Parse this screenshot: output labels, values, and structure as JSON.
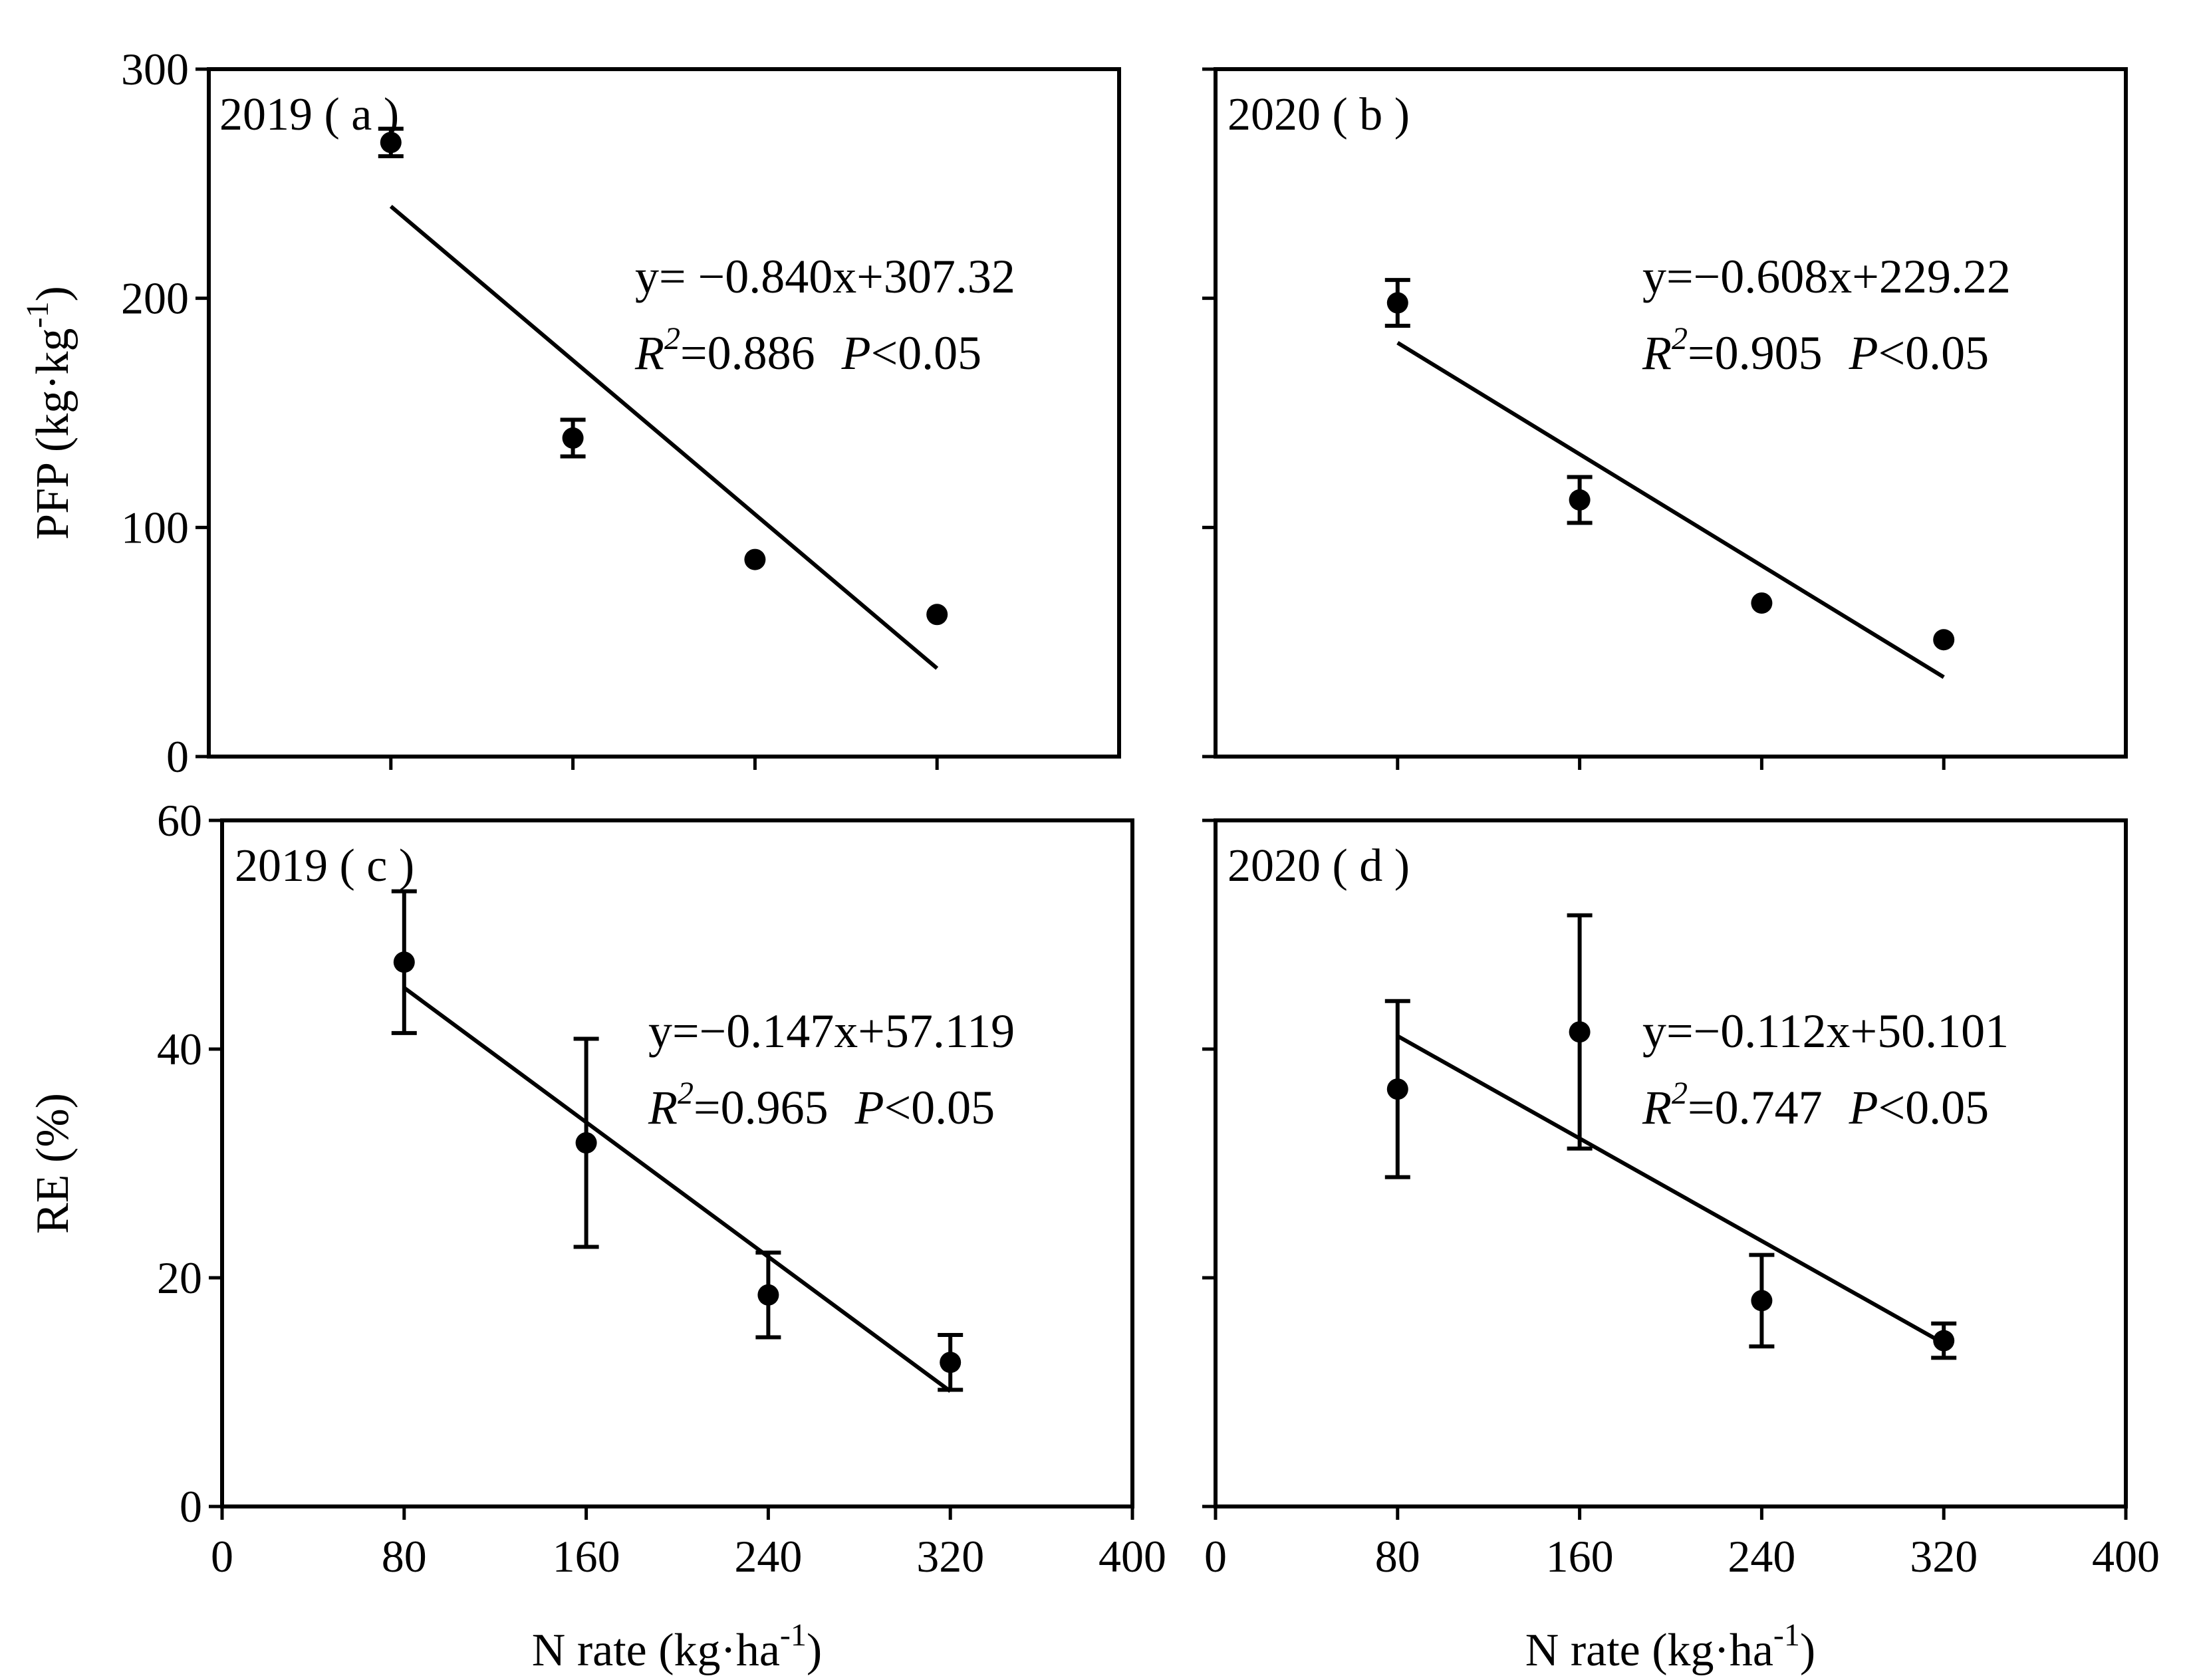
{
  "colors": {
    "ink": "#000000",
    "background": "#ffffff"
  },
  "chart_data": [
    {
      "id": "a",
      "type": "scatter",
      "panel_label": "2019 ( a )",
      "ylabel": "PFP (kg·kg-1)",
      "ylabel_parts": {
        "base": "PFP (kg·kg",
        "sup": "-1",
        "tail": ")"
      },
      "xlabel": "",
      "xlim": [
        0,
        400
      ],
      "ylim": [
        0,
        300
      ],
      "xticks": [
        80,
        160,
        240,
        320
      ],
      "xtick_labels_shown": false,
      "yticks": [
        0,
        100,
        200,
        300
      ],
      "ytick_labels_shown": true,
      "points": [
        {
          "x": 80,
          "y": 268,
          "err": 6
        },
        {
          "x": 160,
          "y": 139,
          "err": 8
        },
        {
          "x": 240,
          "y": 86,
          "err": 0
        },
        {
          "x": 320,
          "y": 62,
          "err": 0
        }
      ],
      "fit": {
        "slope": -0.84,
        "intercept": 307.32,
        "x_range": [
          80,
          320
        ]
      },
      "equation": "y= −0.840x+307.32",
      "r2_label": "R",
      "r2_sup": "2",
      "r2_value": "=0.886",
      "p_label": "P",
      "p_value": "<0.05"
    },
    {
      "id": "b",
      "type": "scatter",
      "panel_label": "2020 ( b )",
      "xlim": [
        0,
        400
      ],
      "ylim": [
        0,
        300
      ],
      "xticks": [
        80,
        160,
        240,
        320
      ],
      "xtick_labels_shown": false,
      "yticks": [
        0,
        100,
        200,
        300
      ],
      "ytick_labels_shown": false,
      "points": [
        {
          "x": 80,
          "y": 198,
          "err": 10
        },
        {
          "x": 160,
          "y": 112,
          "err": 10
        },
        {
          "x": 240,
          "y": 67,
          "err": 0
        },
        {
          "x": 320,
          "y": 51,
          "err": 0
        }
      ],
      "fit": {
        "slope": -0.608,
        "intercept": 229.22,
        "x_range": [
          80,
          320
        ]
      },
      "equation": "y=−0.608x+229.22",
      "r2_label": "R",
      "r2_sup": "2",
      "r2_value": "=0.905",
      "p_label": "P",
      "p_value": "<0.05"
    },
    {
      "id": "c",
      "type": "scatter",
      "panel_label": "2019 ( c )",
      "ylabel": "RE (%)",
      "xlabel": "N rate (kg·ha-1)",
      "xlabel_parts": {
        "base": "N rate (kg·ha",
        "sup": "-1",
        "tail": ")"
      },
      "xlim": [
        0,
        400
      ],
      "ylim": [
        0,
        60
      ],
      "xticks": [
        0,
        80,
        160,
        240,
        320,
        400
      ],
      "xtick_labels_shown": true,
      "yticks": [
        0,
        20,
        40,
        60
      ],
      "ytick_labels_shown": true,
      "points": [
        {
          "x": 80,
          "y": 47.6,
          "err": 6.2
        },
        {
          "x": 160,
          "y": 31.8,
          "err": 9.1
        },
        {
          "x": 240,
          "y": 18.5,
          "err": 3.7
        },
        {
          "x": 320,
          "y": 12.6,
          "err": 2.4
        }
      ],
      "fit": {
        "slope": -0.147,
        "intercept": 57.119,
        "x_range": [
          80,
          320
        ]
      },
      "equation": "y=−0.147x+57.119",
      "r2_label": "R",
      "r2_sup": "2",
      "r2_value": "=0.965",
      "p_label": "P",
      "p_value": "<0.05"
    },
    {
      "id": "d",
      "type": "scatter",
      "panel_label": "2020 ( d )",
      "xlabel": "N rate (kg·ha-1)",
      "xlabel_parts": {
        "base": "N rate (kg·ha",
        "sup": "-1",
        "tail": ")"
      },
      "xlim": [
        0,
        400
      ],
      "ylim": [
        0,
        60
      ],
      "xticks": [
        0,
        80,
        160,
        240,
        320,
        400
      ],
      "xtick_labels_shown": true,
      "yticks": [
        0,
        20,
        40,
        60
      ],
      "ytick_labels_shown": false,
      "points": [
        {
          "x": 80,
          "y": 36.5,
          "err": 7.7
        },
        {
          "x": 160,
          "y": 41.5,
          "err": 10.2
        },
        {
          "x": 240,
          "y": 18.0,
          "err": 4.0
        },
        {
          "x": 320,
          "y": 14.5,
          "err": 1.5
        }
      ],
      "fit": {
        "slope": -0.112,
        "intercept": 50.101,
        "x_range": [
          80,
          320
        ]
      },
      "equation": "y=−0.112x+50.101",
      "r2_label": "R",
      "r2_sup": "2",
      "r2_value": "=0.747",
      "p_label": "P",
      "p_value": "<0.05"
    }
  ]
}
